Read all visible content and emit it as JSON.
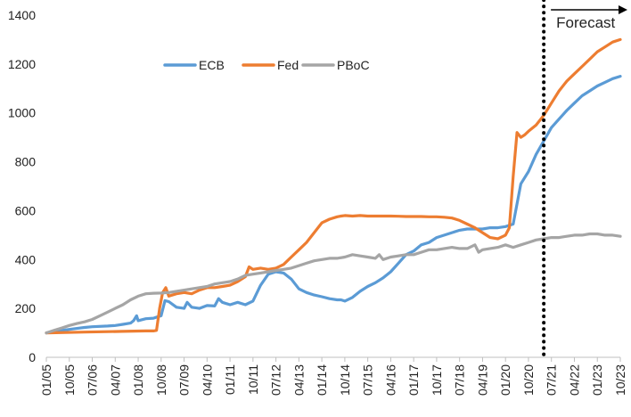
{
  "chart_data": {
    "type": "line",
    "title": "",
    "xlabel": "",
    "ylabel": "",
    "ylim": [
      0,
      1400
    ],
    "yticks": [
      "0",
      "200",
      "400",
      "600",
      "800",
      "1000",
      "1200",
      "1400"
    ],
    "xlim": [
      0,
      75
    ],
    "x_tick_labels": [
      "01/05",
      "10/05",
      "07/06",
      "04/07",
      "01/08",
      "10/08",
      "07/09",
      "04/10",
      "01/11",
      "10/11",
      "07/12",
      "04/13",
      "01/14",
      "10/14",
      "07/15",
      "04/16",
      "01/17",
      "10/17",
      "07/18",
      "04/19",
      "01/20",
      "10/20",
      "07/21",
      "04/22",
      "01/23",
      "10/23"
    ],
    "x_tick_index": [
      0,
      3,
      6,
      9,
      12,
      15,
      18,
      21,
      24,
      27,
      30,
      33,
      36,
      39,
      42,
      45,
      48,
      51,
      54,
      57,
      60,
      63,
      66,
      69,
      72,
      75
    ],
    "grid": false,
    "legend": "top-center",
    "forecast": {
      "label": "Forecast",
      "x": 65
    },
    "series": [
      {
        "name": "ECB",
        "color": "#5B9BD5",
        "x": [
          0,
          2,
          4,
          5,
          6,
          8,
          9,
          10,
          11,
          11.4,
          11.8,
          12,
          13,
          14,
          14.5,
          15,
          15.5,
          16,
          17,
          18,
          18.4,
          19,
          20,
          21,
          22,
          22.5,
          23,
          24,
          25,
          26,
          27,
          28,
          29,
          30,
          31,
          32,
          33,
          34,
          35,
          36,
          37,
          38,
          38.5,
          39,
          40,
          41,
          42,
          43,
          44,
          45,
          46,
          47,
          48,
          49,
          50,
          51,
          52,
          53,
          54,
          55,
          56,
          57,
          58,
          59,
          60,
          61,
          62,
          63,
          64,
          65,
          66,
          67,
          68,
          69,
          70,
          71,
          72,
          73,
          74,
          75
        ],
        "values": [
          100,
          110,
          118,
          122,
          125,
          128,
          130,
          135,
          140,
          150,
          170,
          150,
          158,
          160,
          165,
          170,
          232,
          228,
          205,
          200,
          225,
          205,
          200,
          212,
          210,
          240,
          225,
          215,
          225,
          215,
          230,
          295,
          340,
          350,
          345,
          320,
          280,
          265,
          255,
          248,
          240,
          235,
          235,
          230,
          245,
          270,
          290,
          305,
          325,
          350,
          385,
          420,
          435,
          460,
          470,
          490,
          500,
          510,
          520,
          525,
          525,
          525,
          530,
          530,
          535,
          545,
          710,
          760,
          830,
          885,
          940,
          975,
          1010,
          1040,
          1070,
          1090,
          1110,
          1125,
          1140,
          1150
        ]
      },
      {
        "name": "Fed",
        "color": "#ED7D31",
        "x": [
          0,
          5,
          10,
          13,
          14,
          14.4,
          14.8,
          15.2,
          15.6,
          16,
          17,
          18,
          19,
          20,
          21,
          22,
          23,
          24,
          25,
          26,
          26.5,
          27,
          28,
          29,
          30,
          31,
          32,
          33,
          34,
          35,
          36,
          37,
          38,
          38.5,
          39,
          40,
          41,
          42,
          43,
          44,
          45,
          46,
          47,
          48,
          49,
          50,
          51,
          52,
          53,
          54,
          55,
          56,
          57,
          58,
          59,
          60,
          60.5,
          61,
          61.5,
          62,
          62.5,
          63,
          64,
          65,
          66,
          67,
          68,
          69,
          70,
          71,
          72,
          73,
          74,
          75
        ],
        "values": [
          100,
          103,
          106,
          108,
          108,
          110,
          200,
          265,
          285,
          250,
          260,
          265,
          260,
          275,
          285,
          285,
          290,
          295,
          310,
          330,
          370,
          360,
          365,
          360,
          365,
          380,
          410,
          440,
          470,
          510,
          550,
          565,
          575,
          578,
          580,
          578,
          580,
          578,
          578,
          578,
          578,
          577,
          576,
          576,
          576,
          575,
          575,
          573,
          570,
          560,
          545,
          530,
          510,
          490,
          485,
          500,
          530,
          740,
          920,
          900,
          910,
          925,
          950,
          990,
          1040,
          1090,
          1130,
          1160,
          1190,
          1220,
          1250,
          1270,
          1290,
          1300
        ]
      },
      {
        "name": "PBoC",
        "color": "#A5A5A5",
        "x": [
          0,
          1,
          2,
          3,
          4,
          5,
          6,
          7,
          8,
          9,
          10,
          11,
          12,
          13,
          14,
          15,
          16,
          17,
          18,
          19,
          20,
          21,
          22,
          23,
          24,
          25,
          26,
          27,
          28,
          29,
          30,
          31,
          32,
          33,
          34,
          35,
          36,
          37,
          38,
          39,
          40,
          41,
          42,
          43,
          43.5,
          44,
          45,
          46,
          47,
          48,
          49,
          50,
          51,
          52,
          53,
          54,
          55,
          56,
          56.5,
          57,
          58,
          59,
          60,
          61,
          62,
          63,
          64,
          65,
          66,
          67,
          68,
          69,
          70,
          71,
          72,
          73,
          74,
          75
        ],
        "values": [
          100,
          110,
          120,
          130,
          138,
          145,
          155,
          170,
          185,
          200,
          215,
          235,
          250,
          260,
          262,
          263,
          265,
          270,
          275,
          280,
          285,
          290,
          300,
          305,
          310,
          320,
          335,
          340,
          345,
          350,
          355,
          360,
          365,
          375,
          385,
          395,
          400,
          405,
          405,
          410,
          420,
          415,
          410,
          405,
          420,
          400,
          410,
          415,
          420,
          420,
          430,
          440,
          440,
          445,
          450,
          445,
          445,
          460,
          430,
          440,
          445,
          450,
          460,
          450,
          460,
          470,
          480,
          485,
          490,
          490,
          495,
          500,
          500,
          505,
          505,
          500,
          500,
          495
        ]
      }
    ]
  }
}
